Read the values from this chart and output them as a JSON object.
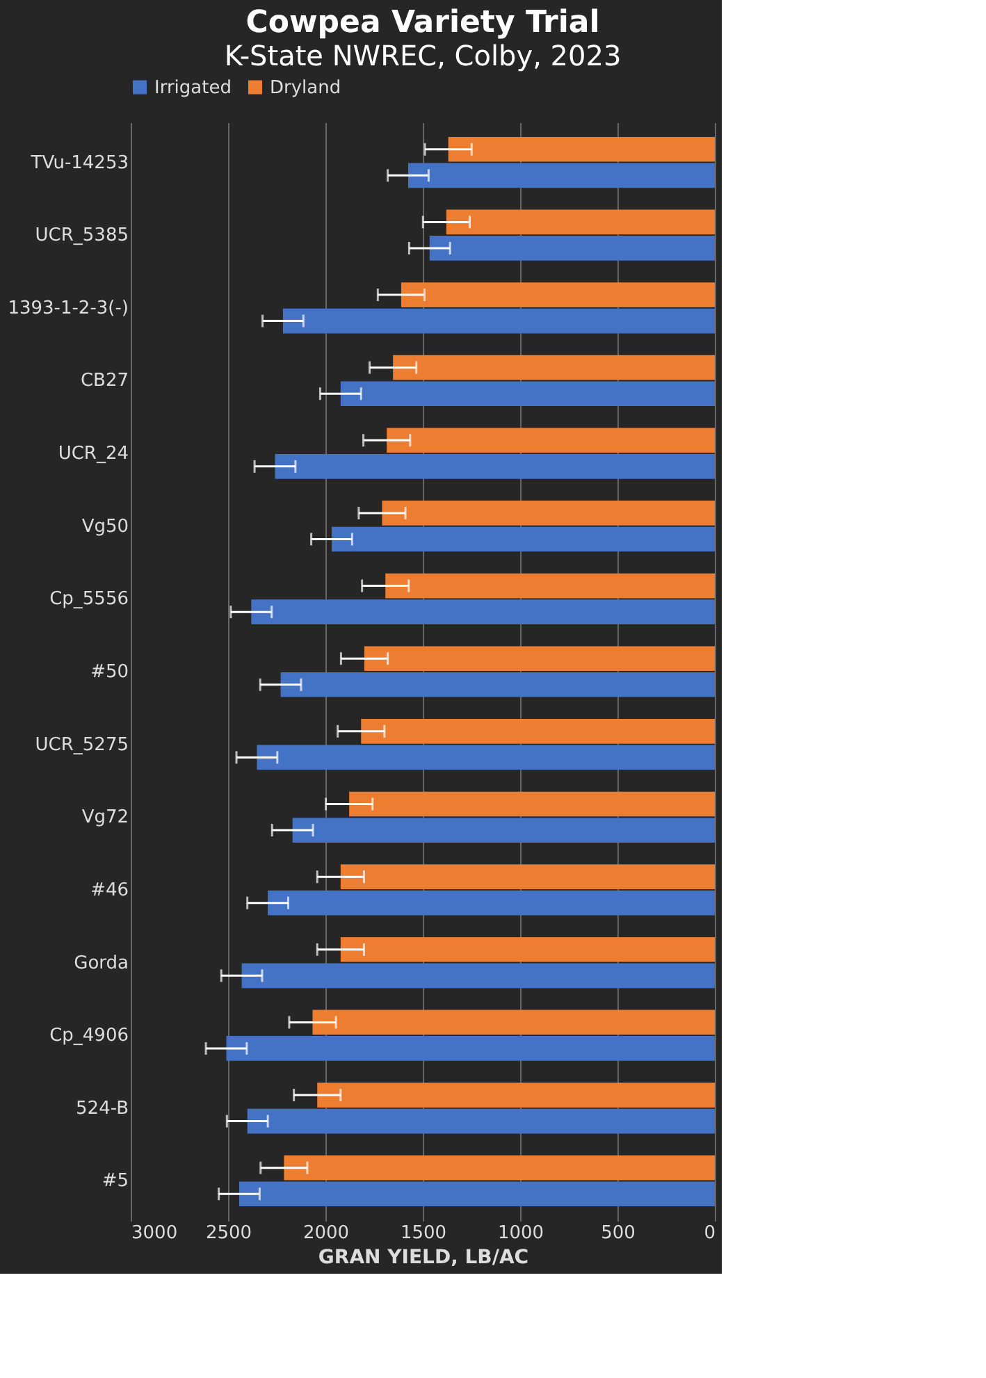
{
  "chart_data": {
    "type": "bar",
    "orientation": "horizontal",
    "title": "Cowpea Variety Trial",
    "subtitle": "K-State NWREC, Colby, 2023",
    "xlabel": "GRAN YIELD, LB/AC",
    "categories": [
      "TVu-14253",
      "UCR_5385",
      "1393-1-2-3(-)",
      "CB27",
      "UCR_24",
      "Vg50",
      "Cp_5556",
      "#50",
      "UCR_5275",
      "Vg72",
      "#46",
      "Gorda",
      "Cp_4906",
      "524-B",
      "#5"
    ],
    "series": [
      {
        "name": "Irrigated",
        "color": "#4472c4",
        "values": [
          1575,
          1465,
          2218,
          1922,
          2259,
          1968,
          2381,
          2230,
          2352,
          2169,
          2296,
          2430,
          2509,
          2401,
          2443
        ],
        "errors": [
          105,
          105,
          105,
          105,
          105,
          105,
          105,
          105,
          105,
          105,
          105,
          105,
          105,
          105,
          105
        ]
      },
      {
        "name": "Dryland",
        "color": "#ed7d31",
        "values": [
          1369,
          1379,
          1611,
          1653,
          1685,
          1709,
          1692,
          1800,
          1817,
          1878,
          1922,
          1922,
          2066,
          2042,
          2213
        ],
        "errors": [
          120,
          120,
          120,
          120,
          120,
          120,
          120,
          120,
          120,
          120,
          120,
          120,
          120,
          120,
          120
        ]
      }
    ],
    "xlim": [
      3000,
      0
    ],
    "xticks": [
      0,
      500,
      1000,
      1500,
      2000,
      2500,
      3000
    ],
    "grid": "x",
    "legend": "top"
  }
}
